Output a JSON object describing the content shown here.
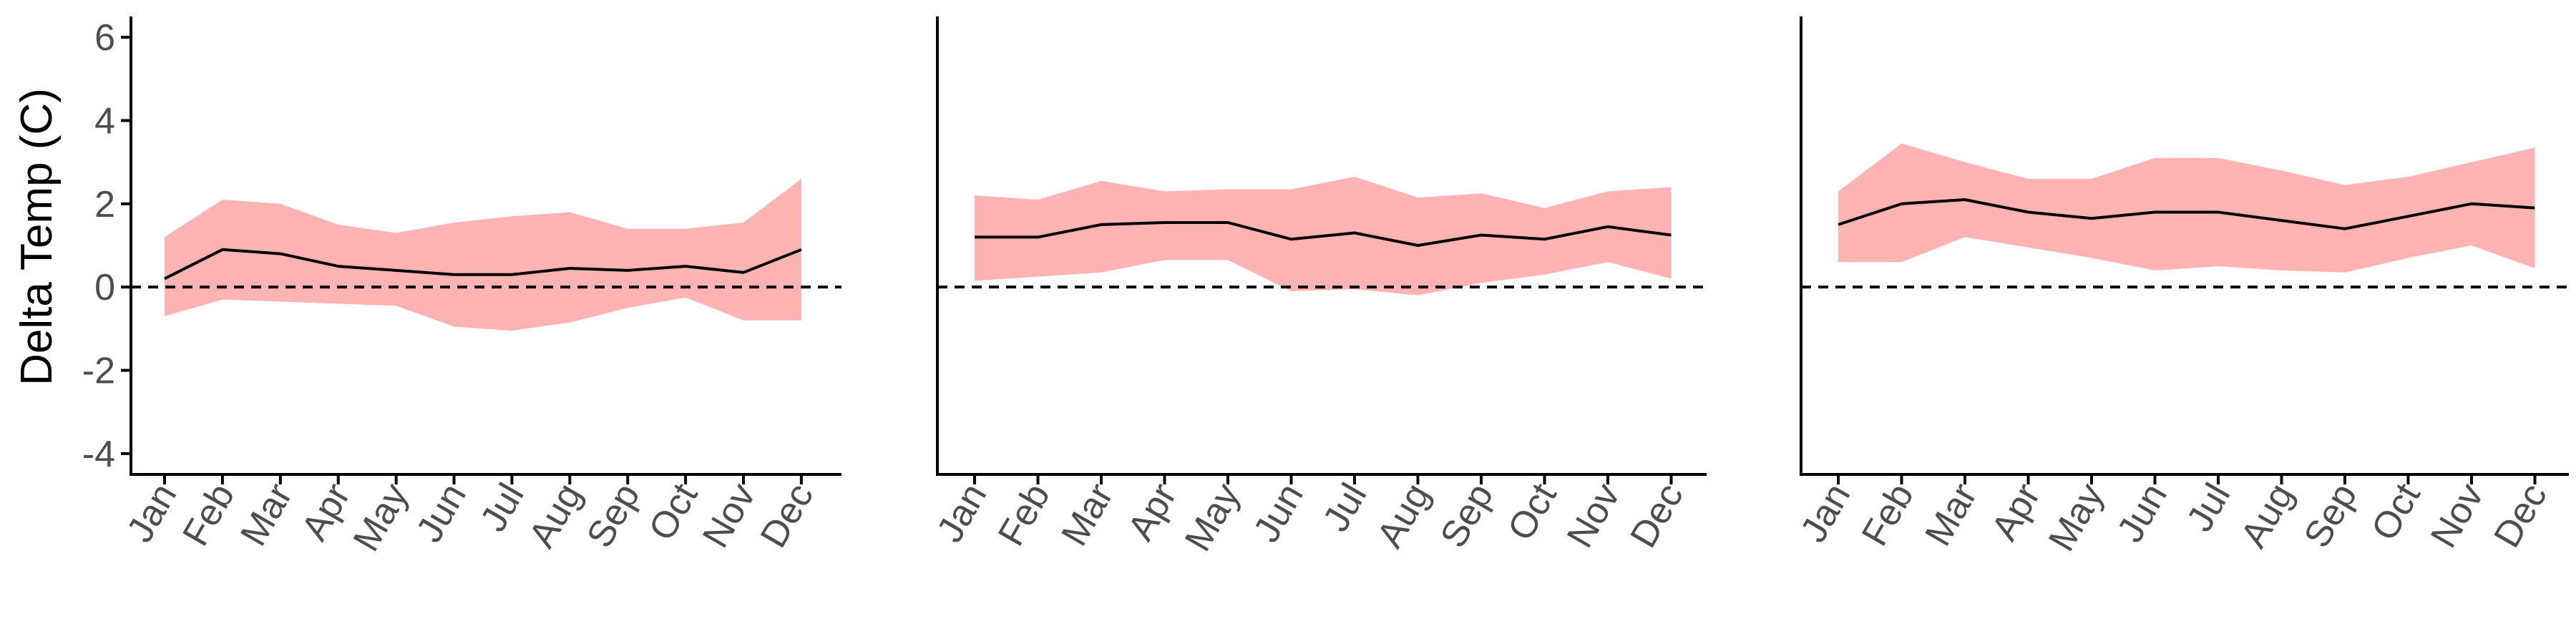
{
  "chart_data": {
    "type": "line",
    "ylabel": "Delta Temp (C)",
    "ylim": [
      -4.5,
      6.5
    ],
    "yticks": [
      -4,
      -2,
      0,
      2,
      4,
      6
    ],
    "reference_line": 0,
    "grid": false,
    "colors": {
      "line": "#000000",
      "band": "#ffb3b3",
      "reference": "#000000",
      "axis": "#000000"
    },
    "categories": [
      "Jan",
      "Feb",
      "Mar",
      "Apr",
      "May",
      "Jun",
      "Jul",
      "Aug",
      "Sep",
      "Oct",
      "Nov",
      "Dec"
    ],
    "panels": [
      {
        "mean": [
          0.2,
          0.9,
          0.8,
          0.5,
          0.4,
          0.3,
          0.3,
          0.45,
          0.4,
          0.5,
          0.35,
          0.9
        ],
        "upper": [
          1.2,
          2.1,
          2.0,
          1.5,
          1.3,
          1.55,
          1.7,
          1.8,
          1.4,
          1.4,
          1.55,
          2.6
        ],
        "lower": [
          -0.7,
          -0.3,
          -0.35,
          -0.4,
          -0.45,
          -0.95,
          -1.05,
          -0.85,
          -0.5,
          -0.25,
          -0.8,
          -0.8
        ]
      },
      {
        "mean": [
          1.2,
          1.2,
          1.5,
          1.55,
          1.55,
          1.15,
          1.3,
          1.0,
          1.25,
          1.15,
          1.45,
          1.25
        ],
        "upper": [
          2.2,
          2.1,
          2.55,
          2.3,
          2.35,
          2.35,
          2.65,
          2.15,
          2.25,
          1.9,
          2.3,
          2.4
        ],
        "lower": [
          0.15,
          0.25,
          0.35,
          0.65,
          0.65,
          -0.1,
          -0.05,
          -0.2,
          0.1,
          0.3,
          0.6,
          0.2
        ]
      },
      {
        "mean": [
          1.5,
          2.0,
          2.1,
          1.8,
          1.65,
          1.8,
          1.8,
          1.6,
          1.4,
          1.7,
          2.0,
          1.9
        ],
        "upper": [
          2.3,
          3.45,
          3.0,
          2.6,
          2.6,
          3.1,
          3.1,
          2.8,
          2.45,
          2.65,
          3.0,
          3.35
        ],
        "lower": [
          0.6,
          0.6,
          1.2,
          0.95,
          0.7,
          0.4,
          0.5,
          0.4,
          0.35,
          0.7,
          1.0,
          0.45
        ]
      }
    ]
  }
}
